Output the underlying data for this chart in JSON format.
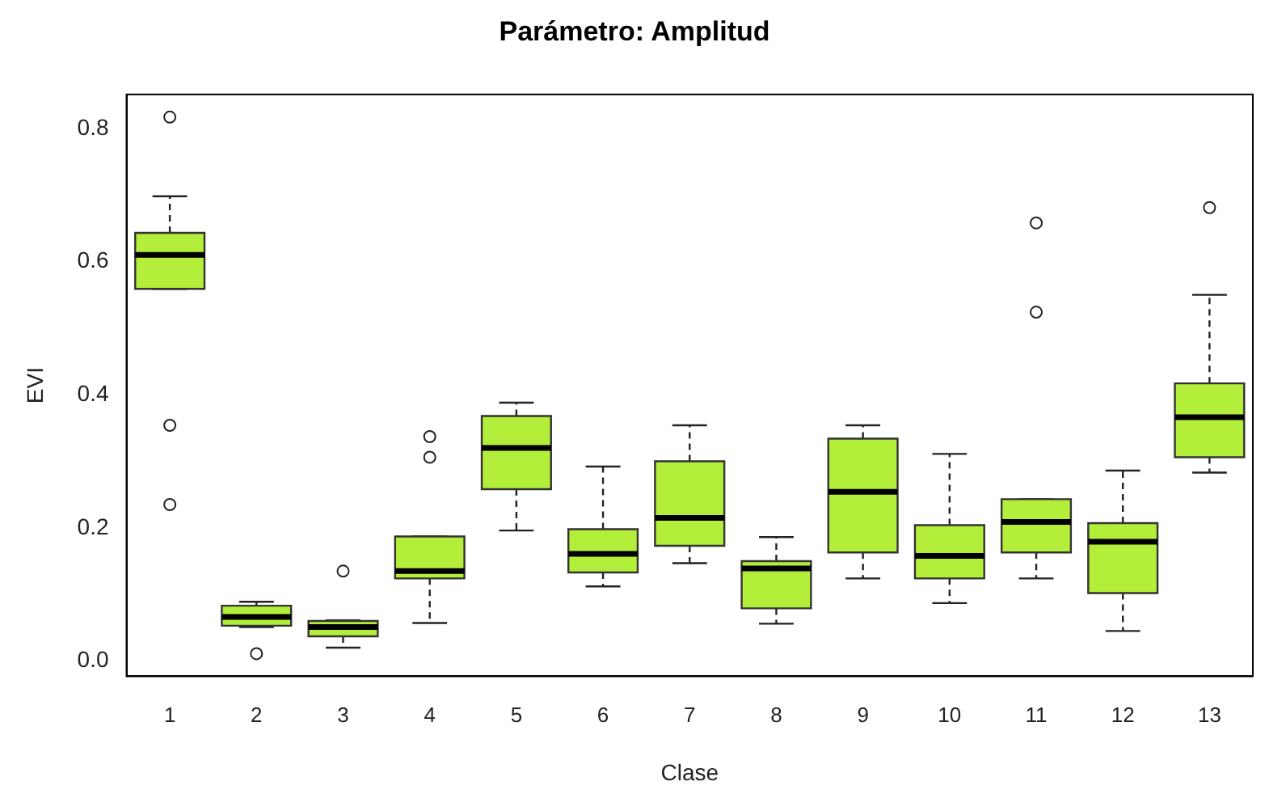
{
  "chart_data": {
    "type": "box",
    "title": "Parámetro: Amplitud",
    "xlabel": "Clase",
    "ylabel": "EVI",
    "categories": [
      "1",
      "2",
      "3",
      "4",
      "5",
      "6",
      "7",
      "8",
      "9",
      "10",
      "11",
      "12",
      "13"
    ],
    "color": "#b3ee3a",
    "boxes": [
      {
        "low": 0.559,
        "q1": 0.559,
        "median": 0.61,
        "q3": 0.643,
        "high": 0.698,
        "outliers": [
          0.817,
          0.354,
          0.235
        ]
      },
      {
        "low": 0.051,
        "q1": 0.053,
        "median": 0.066,
        "q3": 0.083,
        "high": 0.089,
        "outliers": [
          0.011
        ]
      },
      {
        "low": 0.02,
        "q1": 0.037,
        "median": 0.051,
        "q3": 0.06,
        "high": 0.061,
        "outliers": [
          0.135
        ]
      },
      {
        "low": 0.057,
        "q1": 0.124,
        "median": 0.135,
        "q3": 0.187,
        "high": 0.187,
        "outliers": [
          0.337,
          0.306
        ]
      },
      {
        "low": 0.196,
        "q1": 0.258,
        "median": 0.32,
        "q3": 0.368,
        "high": 0.388
      },
      {
        "low": 0.112,
        "q1": 0.133,
        "median": 0.161,
        "q3": 0.198,
        "high": 0.292
      },
      {
        "low": 0.147,
        "q1": 0.173,
        "median": 0.215,
        "q3": 0.3,
        "high": 0.354
      },
      {
        "low": 0.056,
        "q1": 0.079,
        "median": 0.139,
        "q3": 0.15,
        "high": 0.186
      },
      {
        "low": 0.124,
        "q1": 0.163,
        "median": 0.254,
        "q3": 0.334,
        "high": 0.354
      },
      {
        "low": 0.087,
        "q1": 0.124,
        "median": 0.158,
        "q3": 0.204,
        "high": 0.311
      },
      {
        "low": 0.124,
        "q1": 0.163,
        "median": 0.209,
        "q3": 0.243,
        "high": 0.243,
        "outliers": [
          0.658,
          0.524
        ]
      },
      {
        "low": 0.045,
        "q1": 0.102,
        "median": 0.179,
        "q3": 0.207,
        "high": 0.286
      },
      {
        "low": 0.283,
        "q1": 0.306,
        "median": 0.366,
        "q3": 0.417,
        "high": 0.55,
        "outliers": [
          0.681
        ]
      }
    ],
    "ylim": [
      -0.023,
      0.851
    ],
    "yticks": [
      {
        "value": 0,
        "label": "0.0"
      },
      0.2,
      0.4,
      0.6,
      0.8
    ],
    "grid": false
  }
}
